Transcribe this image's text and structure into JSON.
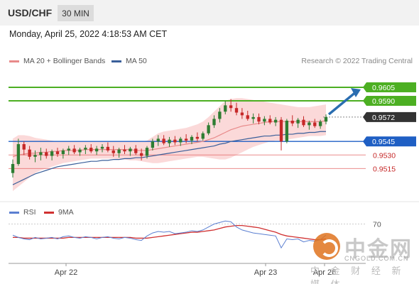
{
  "header": {
    "symbol": "USD/CHF",
    "timeframe": "30 MIN"
  },
  "datetime": "Monday, April 25, 2022 4:18:53 AM CET",
  "legend": {
    "ma20": {
      "label": "MA 20 + Bollinger Bands",
      "color": "#e88a8a"
    },
    "ma50": {
      "label": "MA 50",
      "color": "#3a5f9a"
    }
  },
  "research": "Research © 2022 Trading Central",
  "rsi_legend": {
    "rsi": {
      "label": "RSI",
      "color": "#5b7fd1"
    },
    "ma": {
      "label": "9MA",
      "color": "#d03030"
    }
  },
  "watermark": {
    "cn": "中金网",
    "url": "CNGOLD.COM.CN",
    "sub": "中 金 财 经 新 媒 体"
  },
  "colors": {
    "up": "#2e7d32",
    "down": "#c62828",
    "band": "#fbd9d9",
    "resistance": "#4caf22",
    "support_blue": "#1f5fc4",
    "support_red": "#e25c5c",
    "arrow": "#2a6db0"
  },
  "chart_data": [
    {
      "type": "candlestick",
      "ylim": [
        0.9483,
        0.9627
      ],
      "y_scale_labels": [
        {
          "label": "0.9605",
          "value": 0.9605,
          "style": "resistance"
        },
        {
          "label": "0.9590",
          "value": 0.959,
          "style": "resistance"
        },
        {
          "label": "0.9572",
          "value": 0.9572,
          "style": "current"
        },
        {
          "label": "0.9545",
          "value": 0.9545,
          "style": "support_blue"
        },
        {
          "label": "0.9530",
          "value": 0.953,
          "style": "support_red"
        },
        {
          "label": "0.9515",
          "value": 0.9515,
          "style": "support_red"
        }
      ],
      "x_labels": [
        "Apr 22",
        "Apr 23",
        "Apr 26"
      ],
      "candles": [
        [
          0.951,
          0.9525,
          0.9505,
          0.952
        ],
        [
          0.952,
          0.9548,
          0.9518,
          0.9542
        ],
        [
          0.9542,
          0.9545,
          0.953,
          0.9536
        ],
        [
          0.9536,
          0.954,
          0.9525,
          0.9528
        ],
        [
          0.9528,
          0.9535,
          0.9522,
          0.953
        ],
        [
          0.953,
          0.9538,
          0.9524,
          0.9533
        ],
        [
          0.9533,
          0.9537,
          0.9526,
          0.9529
        ],
        [
          0.9529,
          0.9536,
          0.9524,
          0.9534
        ],
        [
          0.9534,
          0.9538,
          0.9528,
          0.9531
        ],
        [
          0.9531,
          0.9537,
          0.9526,
          0.9535
        ],
        [
          0.9535,
          0.954,
          0.953,
          0.9537
        ],
        [
          0.9537,
          0.9541,
          0.9531,
          0.9533
        ],
        [
          0.9533,
          0.9538,
          0.9529,
          0.9536
        ],
        [
          0.9536,
          0.9541,
          0.9531,
          0.9538
        ],
        [
          0.9538,
          0.9542,
          0.9532,
          0.9534
        ],
        [
          0.9534,
          0.954,
          0.953,
          0.9537
        ],
        [
          0.9537,
          0.9542,
          0.9533,
          0.9539
        ],
        [
          0.9539,
          0.9544,
          0.9533,
          0.9535
        ],
        [
          0.9535,
          0.954,
          0.9528,
          0.9532
        ],
        [
          0.9532,
          0.9538,
          0.9527,
          0.9536
        ],
        [
          0.9536,
          0.9541,
          0.9531,
          0.9534
        ],
        [
          0.9534,
          0.9539,
          0.9529,
          0.9537
        ],
        [
          0.9537,
          0.9541,
          0.953,
          0.9532
        ],
        [
          0.9532,
          0.9537,
          0.9524,
          0.9529
        ],
        [
          0.9529,
          0.954,
          0.9526,
          0.9538
        ],
        [
          0.9538,
          0.9548,
          0.9535,
          0.9545
        ],
        [
          0.9545,
          0.9552,
          0.954,
          0.9548
        ],
        [
          0.9548,
          0.9552,
          0.9541,
          0.9543
        ],
        [
          0.9543,
          0.955,
          0.9539,
          0.9547
        ],
        [
          0.9547,
          0.9551,
          0.9541,
          0.9544
        ],
        [
          0.9544,
          0.955,
          0.954,
          0.9548
        ],
        [
          0.9548,
          0.9553,
          0.9543,
          0.9546
        ],
        [
          0.9546,
          0.9552,
          0.9542,
          0.955
        ],
        [
          0.955,
          0.9555,
          0.9545,
          0.9548
        ],
        [
          0.9548,
          0.9556,
          0.9546,
          0.9554
        ],
        [
          0.9554,
          0.9566,
          0.9552,
          0.9563
        ],
        [
          0.9563,
          0.9574,
          0.956,
          0.957
        ],
        [
          0.957,
          0.9582,
          0.9566,
          0.9578
        ],
        [
          0.9578,
          0.959,
          0.9575,
          0.9585
        ],
        [
          0.9585,
          0.9592,
          0.9578,
          0.9582
        ],
        [
          0.9582,
          0.9588,
          0.9574,
          0.9577
        ],
        [
          0.9577,
          0.9582,
          0.957,
          0.9574
        ],
        [
          0.9574,
          0.9579,
          0.9568,
          0.957
        ],
        [
          0.957,
          0.9576,
          0.9565,
          0.9572
        ],
        [
          0.9572,
          0.9576,
          0.9564,
          0.9567
        ],
        [
          0.9567,
          0.9573,
          0.9563,
          0.957
        ],
        [
          0.957,
          0.9574,
          0.9564,
          0.9566
        ],
        [
          0.9566,
          0.9572,
          0.9562,
          0.9569
        ],
        [
          0.9569,
          0.9572,
          0.9535,
          0.9545
        ],
        [
          0.9545,
          0.957,
          0.9543,
          0.9568
        ],
        [
          0.9568,
          0.9574,
          0.9562,
          0.9565
        ],
        [
          0.9565,
          0.9571,
          0.956,
          0.9569
        ],
        [
          0.9569,
          0.9573,
          0.9561,
          0.9563
        ],
        [
          0.9563,
          0.9568,
          0.9558,
          0.9566
        ],
        [
          0.9566,
          0.957,
          0.956,
          0.9562
        ],
        [
          0.9562,
          0.9569,
          0.9559,
          0.9567
        ],
        [
          0.9567,
          0.9575,
          0.9564,
          0.9572
        ]
      ],
      "ma20": [
        0.9528,
        0.953,
        0.9531,
        0.9532,
        0.9532,
        0.9533,
        0.9533,
        0.9534,
        0.9534,
        0.9535,
        0.9535,
        0.9535,
        0.9535,
        0.9536,
        0.9536,
        0.9536,
        0.9536,
        0.9536,
        0.9536,
        0.9536,
        0.9536,
        0.9536,
        0.9535,
        0.9535,
        0.9535,
        0.9536,
        0.9537,
        0.9538,
        0.9539,
        0.954,
        0.9541,
        0.9542,
        0.9543,
        0.9544,
        0.9545,
        0.9547,
        0.9549,
        0.9552,
        0.9555,
        0.9558,
        0.956,
        0.9562,
        0.9563,
        0.9564,
        0.9565,
        0.9566,
        0.9567,
        0.9567,
        0.9567,
        0.9567,
        0.9567,
        0.9567,
        0.9567,
        0.9567,
        0.9567,
        0.9567,
        0.9568
      ],
      "band_upper": [
        0.9548,
        0.9552,
        0.9552,
        0.9551,
        0.9549,
        0.9548,
        0.9547,
        0.9546,
        0.9545,
        0.9545,
        0.9545,
        0.9545,
        0.9545,
        0.9545,
        0.9545,
        0.9545,
        0.9545,
        0.9545,
        0.9545,
        0.9545,
        0.9545,
        0.9545,
        0.9545,
        0.9545,
        0.9546,
        0.955,
        0.9554,
        0.9556,
        0.9557,
        0.9558,
        0.9559,
        0.956,
        0.9562,
        0.9564,
        0.9567,
        0.9572,
        0.9578,
        0.9584,
        0.959,
        0.9592,
        0.9593,
        0.9593,
        0.9592,
        0.9591,
        0.959,
        0.9589,
        0.9588,
        0.9587,
        0.9586,
        0.9585,
        0.9584,
        0.9583,
        0.9583,
        0.9583,
        0.9584,
        0.9585,
        0.9586
      ],
      "band_lower": [
        0.949,
        0.9495,
        0.95,
        0.9505,
        0.951,
        0.9513,
        0.9515,
        0.9517,
        0.9519,
        0.9521,
        0.9522,
        0.9523,
        0.9524,
        0.9525,
        0.9526,
        0.9526,
        0.9526,
        0.9526,
        0.9526,
        0.9525,
        0.9525,
        0.9524,
        0.9524,
        0.9523,
        0.9522,
        0.9521,
        0.9521,
        0.9522,
        0.9523,
        0.9524,
        0.9525,
        0.9526,
        0.9527,
        0.9528,
        0.9528,
        0.9527,
        0.9526,
        0.9525,
        0.9525,
        0.9527,
        0.953,
        0.9533,
        0.9536,
        0.9539,
        0.9541,
        0.9543,
        0.9545,
        0.9546,
        0.9546,
        0.9547,
        0.9548,
        0.9549,
        0.955,
        0.9551,
        0.9551,
        0.9551,
        0.9552
      ],
      "ma50": [
        0.9497,
        0.95,
        0.9503,
        0.9506,
        0.9509,
        0.9511,
        0.9513,
        0.9515,
        0.9517,
        0.9518,
        0.9519,
        0.952,
        0.9521,
        0.9522,
        0.9523,
        0.9523,
        0.9524,
        0.9524,
        0.9525,
        0.9525,
        0.9526,
        0.9526,
        0.9527,
        0.9527,
        0.9528,
        0.9529,
        0.953,
        0.9531,
        0.9532,
        0.9533,
        0.9534,
        0.9535,
        0.9536,
        0.9537,
        0.9538,
        0.9539,
        0.954,
        0.9542,
        0.9543,
        0.9545,
        0.9546,
        0.9547,
        0.9548,
        0.9549,
        0.955,
        0.9551,
        0.9551,
        0.9552,
        0.9552,
        0.9553,
        0.9553,
        0.9554,
        0.9554,
        0.9555,
        0.9555,
        0.9556,
        0.9556
      ],
      "arrow": {
        "from_value": 0.9575,
        "to_value": 0.9605
      }
    },
    {
      "type": "line",
      "title": "RSI",
      "ylim": [
        20,
        80
      ],
      "y_labels": [
        {
          "label": "70",
          "value": 70
        }
      ],
      "series": [
        {
          "name": "RSI",
          "values": [
            55,
            52,
            50,
            49,
            52,
            50,
            51,
            52,
            50,
            53,
            54,
            52,
            51,
            53,
            52,
            50,
            52,
            53,
            51,
            50,
            52,
            51,
            49,
            48,
            54,
            58,
            60,
            59,
            60,
            57,
            58,
            59,
            61,
            60,
            62,
            66,
            70,
            72,
            74,
            73,
            66,
            62,
            60,
            58,
            57,
            56,
            55,
            54,
            38,
            50,
            49,
            50,
            46,
            48,
            47,
            49,
            55
          ]
        },
        {
          "name": "9MA",
          "values": [
            52,
            52,
            51,
            51,
            51,
            51,
            51,
            51,
            51,
            51,
            52,
            52,
            52,
            52,
            52,
            52,
            52,
            52,
            52,
            52,
            52,
            52,
            51,
            51,
            51,
            52,
            53,
            54,
            55,
            56,
            57,
            58,
            59,
            59,
            60,
            61,
            62,
            64,
            66,
            67,
            68,
            68,
            67,
            66,
            65,
            63,
            61,
            59,
            56,
            54,
            53,
            52,
            51,
            50,
            49,
            49,
            50
          ]
        }
      ]
    }
  ]
}
